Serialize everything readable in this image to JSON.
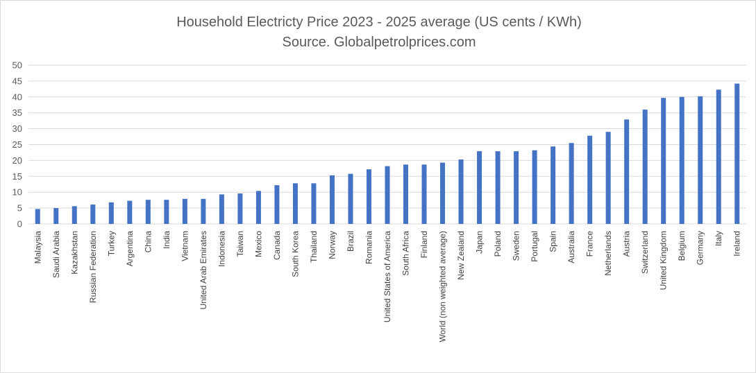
{
  "chart_data": {
    "type": "bar",
    "title": "Household Electricty Price 2023 - 2025 average (US cents / KWh)",
    "subtitle": "Source. Globalpetrolprices.com",
    "xlabel": "",
    "ylabel": "",
    "ylim": [
      0,
      50
    ],
    "yticks": [
      0,
      5,
      10,
      15,
      20,
      25,
      30,
      35,
      40,
      45,
      50
    ],
    "grid": true,
    "legend": "none",
    "bar_color": "#4472c4",
    "categories": [
      "Malaysia",
      "Saudi Arabia",
      "Kazakhstan",
      "Russian Federation",
      "Turkey",
      "Argentina",
      "China",
      "India",
      "Vietnam",
      "United Arab Emirates",
      "Indonesia",
      "Taiwan",
      "Mexico",
      "Canada",
      "South Korea",
      "Thailand",
      "Norway",
      "Brazil",
      "Romania",
      "United States of America",
      "South Africa",
      "Finland",
      "World (non weighted average)",
      "New Zealand",
      "Japan",
      "Poland",
      "Sweden",
      "Portugal",
      "Spain",
      "Australia",
      "France",
      "Netherlands",
      "Austria",
      "Switzerland",
      "United Kingdom",
      "Belgium",
      "Germany",
      "Italy",
      "Ireland"
    ],
    "values": [
      4.7,
      5.0,
      5.6,
      6.1,
      6.8,
      7.3,
      7.6,
      7.6,
      7.9,
      7.9,
      9.3,
      9.6,
      10.4,
      12.2,
      12.8,
      12.8,
      15.3,
      15.8,
      17.2,
      18.2,
      18.7,
      18.7,
      19.3,
      20.3,
      22.9,
      22.9,
      22.9,
      23.2,
      24.4,
      25.5,
      27.8,
      29.0,
      32.9,
      36.0,
      39.7,
      40.0,
      40.2,
      42.3,
      44.2
    ]
  }
}
